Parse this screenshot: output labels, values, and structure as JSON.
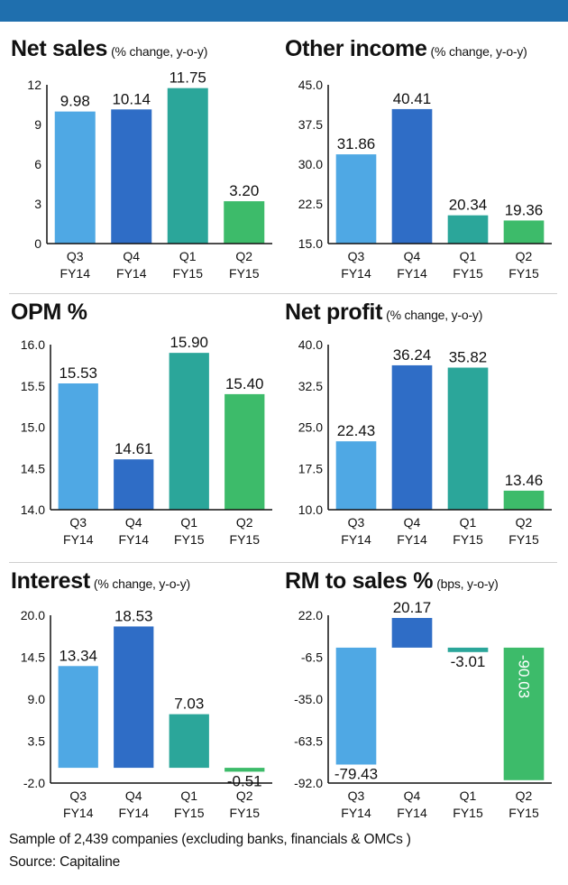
{
  "colors": {
    "top_bar": "#1f6fae",
    "q3": "#4fa8e4",
    "q4": "#2f6dc6",
    "q1": "#2ba69a",
    "q2": "#3dbb6a"
  },
  "chart_data": [
    {
      "id": "net-sales",
      "type": "bar",
      "title": "Net sales",
      "subtitle": "(% change, y-o-y)",
      "categories": [
        [
          "Q3",
          "FY14"
        ],
        [
          "Q4",
          "FY14"
        ],
        [
          "Q1",
          "FY15"
        ],
        [
          "Q2",
          "FY15"
        ]
      ],
      "values": [
        9.98,
        10.14,
        11.75,
        3.2
      ],
      "value_labels": [
        "9.98",
        "10.14",
        "11.75",
        "3.20"
      ],
      "ylim": [
        0,
        12
      ],
      "yticks": [
        0,
        3,
        6,
        9,
        12
      ],
      "ytick_labels": [
        "0",
        "3",
        "6",
        "9",
        "12"
      ]
    },
    {
      "id": "other-income",
      "type": "bar",
      "title": "Other income",
      "subtitle": "(% change, y-o-y)",
      "categories": [
        [
          "Q3",
          "FY14"
        ],
        [
          "Q4",
          "FY14"
        ],
        [
          "Q1",
          "FY15"
        ],
        [
          "Q2",
          "FY15"
        ]
      ],
      "values": [
        31.86,
        40.41,
        20.34,
        19.36
      ],
      "value_labels": [
        "31.86",
        "40.41",
        "20.34",
        "19.36"
      ],
      "ylim": [
        15,
        45
      ],
      "yticks": [
        15,
        22.5,
        30,
        37.5,
        45
      ],
      "ytick_labels": [
        "15.0",
        "22.5",
        "30.0",
        "37.5",
        "45.0"
      ]
    },
    {
      "id": "opm",
      "type": "bar",
      "title": "OPM %",
      "subtitle": "",
      "categories": [
        [
          "Q3",
          "FY14"
        ],
        [
          "Q4",
          "FY14"
        ],
        [
          "Q1",
          "FY15"
        ],
        [
          "Q2",
          "FY15"
        ]
      ],
      "values": [
        15.53,
        14.61,
        15.9,
        15.4
      ],
      "value_labels": [
        "15.53",
        "14.61",
        "15.90",
        "15.40"
      ],
      "ylim": [
        14,
        16
      ],
      "yticks": [
        14,
        14.5,
        15,
        15.5,
        16
      ],
      "ytick_labels": [
        "14.0",
        "14.5",
        "15.0",
        "15.5",
        "16.0"
      ]
    },
    {
      "id": "net-profit",
      "type": "bar",
      "title": "Net profit",
      "subtitle": "(% change, y-o-y)",
      "categories": [
        [
          "Q3",
          "FY14"
        ],
        [
          "Q4",
          "FY14"
        ],
        [
          "Q1",
          "FY15"
        ],
        [
          "Q2",
          "FY15"
        ]
      ],
      "values": [
        22.43,
        36.24,
        35.82,
        13.46
      ],
      "value_labels": [
        "22.43",
        "36.24",
        "35.82",
        "13.46"
      ],
      "ylim": [
        10,
        40
      ],
      "yticks": [
        10,
        17.5,
        25,
        32.5,
        40
      ],
      "ytick_labels": [
        "10.0",
        "17.5",
        "25.0",
        "32.5",
        "40.0"
      ]
    },
    {
      "id": "interest",
      "type": "bar",
      "title": "Interest",
      "subtitle": "(% change, y-o-y)",
      "categories": [
        [
          "Q3",
          "FY14"
        ],
        [
          "Q4",
          "FY14"
        ],
        [
          "Q1",
          "FY15"
        ],
        [
          "Q2",
          "FY15"
        ]
      ],
      "values": [
        13.34,
        18.53,
        7.03,
        -0.51
      ],
      "value_labels": [
        "13.34",
        "18.53",
        "7.03",
        "-0.51"
      ],
      "ylim": [
        -2,
        20
      ],
      "yticks": [
        -2,
        3.5,
        9,
        14.5,
        20
      ],
      "ytick_labels": [
        "-2.0",
        "3.5",
        "9.0",
        "14.5",
        "20.0"
      ]
    },
    {
      "id": "rm-to-sales",
      "type": "bar",
      "title": "RM to sales %",
      "subtitle": "(bps, y-o-y)",
      "categories": [
        [
          "Q3",
          "FY14"
        ],
        [
          "Q4",
          "FY14"
        ],
        [
          "Q1",
          "FY15"
        ],
        [
          "Q2",
          "FY15"
        ]
      ],
      "values": [
        -79.43,
        20.17,
        -3.01,
        -90.03
      ],
      "value_labels": [
        "-79.43",
        "20.17",
        "-3.01",
        "-90.03"
      ],
      "ylim": [
        -92,
        22
      ],
      "yticks": [
        -92,
        -63.5,
        -35,
        -6.5,
        22
      ],
      "ytick_labels": [
        "-92.0",
        "-63.5",
        "-35.0",
        "-6.5",
        "22.0"
      ]
    }
  ],
  "footer": {
    "sample_note": "Sample of 2,439 companies (excluding banks, financials & OMCs )",
    "source": "Source: Capitaline"
  }
}
